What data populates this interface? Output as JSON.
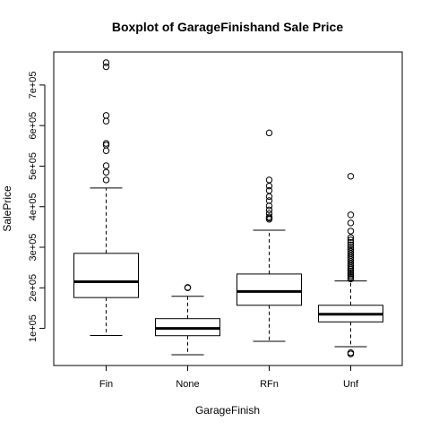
{
  "chart_data": {
    "type": "boxplot",
    "title": "Boxplot of GarageFinishand Sale Price",
    "xlabel": "GarageFinish",
    "ylabel": "SalePrice",
    "ylim": [
      0,
      790000
    ],
    "y_ticks": [
      100000,
      200000,
      300000,
      400000,
      500000,
      600000,
      700000
    ],
    "y_tick_labels": [
      "1e+05",
      "2e+05",
      "3e+05",
      "4e+05",
      "5e+05",
      "6e+05",
      "7e+05"
    ],
    "grid": false,
    "categories": [
      "Fin",
      "None",
      "RFn",
      "Unf"
    ],
    "boxes": [
      {
        "name": "Fin",
        "whisker_low": 82500,
        "q1": 176000,
        "median": 215000,
        "q3": 285000,
        "whisker_high": 446000,
        "outliers": [
          466000,
          485000,
          501000,
          538000,
          552000,
          556000,
          611000,
          625000,
          745000,
          755000
        ]
      },
      {
        "name": "None",
        "whisker_low": 35000,
        "q1": 82000,
        "median": 100000,
        "q3": 124000,
        "whisker_high": 179000,
        "outliers": [
          200000,
          201000
        ]
      },
      {
        "name": "RFn",
        "whisker_low": 68000,
        "q1": 157000,
        "median": 191000,
        "q3": 234000,
        "whisker_high": 342000,
        "outliers": [
          369000,
          372000,
          375000,
          383000,
          392000,
          402000,
          415000,
          425000,
          440000,
          451000,
          466000,
          582000
        ]
      },
      {
        "name": "Unf",
        "whisker_low": 55000,
        "q1": 116000,
        "median": 135000,
        "q3": 157000,
        "whisker_high": 217000,
        "outliers": [
          37000,
          40000,
          222000,
          226000,
          230000,
          234000,
          238000,
          242000,
          246000,
          250000,
          255000,
          260000,
          265000,
          270000,
          275000,
          280000,
          285000,
          290000,
          295000,
          300000,
          306000,
          312000,
          318000,
          324000,
          340000,
          360000,
          380000,
          475000
        ]
      }
    ]
  }
}
